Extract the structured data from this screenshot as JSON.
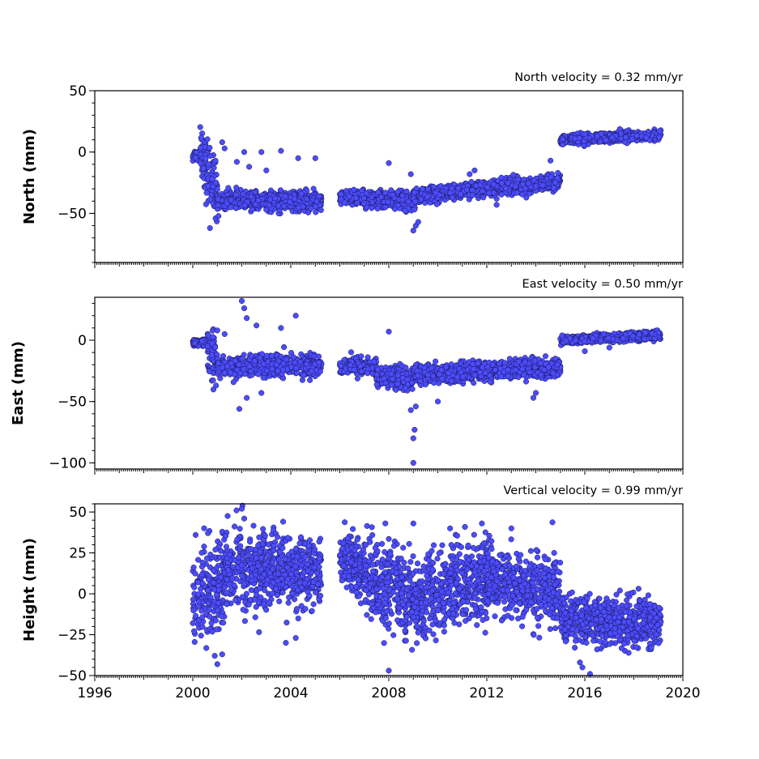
{
  "chart_data": [
    {
      "type": "scatter",
      "velocity_label": "North velocity = 0.32 mm/yr",
      "ylabel": "North (mm)",
      "xlim": [
        1996,
        2020
      ],
      "ylim": [
        -90,
        50
      ],
      "yticks": [
        50,
        0,
        -50
      ],
      "ytick_labels": [
        "50",
        "0",
        "−50"
      ],
      "marker_color": "#4c4cff",
      "segments": [
        {
          "x0": 2000.0,
          "x1": 2000.3,
          "y0": -3,
          "y1": -2,
          "noise": 2.5
        },
        {
          "x0": 2000.3,
          "x1": 2001.0,
          "y0": -5,
          "y1": -30,
          "noise": 12
        },
        {
          "x0": 2001.0,
          "x1": 2005.25,
          "y0": -40,
          "y1": -40,
          "noise": 3.5
        },
        {
          "x0": 2006.0,
          "x1": 2007.5,
          "y0": -37,
          "y1": -38,
          "noise": 3
        },
        {
          "x0": 2007.5,
          "x1": 2009.0,
          "y0": -38,
          "y1": -40,
          "noise": 3.5
        },
        {
          "x0": 2009.0,
          "x1": 2010.5,
          "y0": -37,
          "y1": -32,
          "noise": 3
        },
        {
          "x0": 2010.5,
          "x1": 2015.0,
          "y0": -32,
          "y1": -25,
          "noise": 3
        },
        {
          "x0": 2015.0,
          "x1": 2019.1,
          "y0": 10,
          "y1": 14,
          "noise": 1.8
        }
      ],
      "outliers": [
        {
          "x": 2000.7,
          "y": -62
        },
        {
          "x": 2001.2,
          "y": 8
        },
        {
          "x": 2001.3,
          "y": 3
        },
        {
          "x": 2001.8,
          "y": -8
        },
        {
          "x": 2002.1,
          "y": 0
        },
        {
          "x": 2002.3,
          "y": -12
        },
        {
          "x": 2002.8,
          "y": 0
        },
        {
          "x": 2003.0,
          "y": -15
        },
        {
          "x": 2003.6,
          "y": 1
        },
        {
          "x": 2004.3,
          "y": -5
        },
        {
          "x": 2005.0,
          "y": -5
        },
        {
          "x": 2008.0,
          "y": -9
        },
        {
          "x": 2009.0,
          "y": -64
        },
        {
          "x": 2009.1,
          "y": -60
        },
        {
          "x": 2009.2,
          "y": -57
        },
        {
          "x": 2008.9,
          "y": -18
        },
        {
          "x": 2011.3,
          "y": -18
        },
        {
          "x": 2011.5,
          "y": -15
        },
        {
          "x": 2014.6,
          "y": -7
        },
        {
          "x": 2014.9,
          "y": -17
        },
        {
          "x": 2012.4,
          "y": -43
        }
      ]
    },
    {
      "type": "scatter",
      "velocity_label": "East velocity = 0.50 mm/yr",
      "ylabel": "East (mm)",
      "xlim": [
        1996,
        2020
      ],
      "ylim": [
        -105,
        35
      ],
      "yticks": [
        0,
        -50,
        -100
      ],
      "ytick_labels": [
        "0",
        "−50",
        "−100"
      ],
      "marker_color": "#4c4cff",
      "segments": [
        {
          "x0": 2000.0,
          "x1": 2000.6,
          "y0": -2,
          "y1": -1,
          "noise": 1.5
        },
        {
          "x0": 2000.6,
          "x1": 2001.0,
          "y0": -10,
          "y1": -20,
          "noise": 10
        },
        {
          "x0": 2001.0,
          "x1": 2005.25,
          "y0": -22,
          "y1": -20,
          "noise": 4
        },
        {
          "x0": 2006.0,
          "x1": 2007.5,
          "y0": -21,
          "y1": -22,
          "noise": 3.5
        },
        {
          "x0": 2007.5,
          "x1": 2009.0,
          "y0": -30,
          "y1": -32,
          "noise": 4
        },
        {
          "x0": 2009.0,
          "x1": 2015.0,
          "y0": -28,
          "y1": -22,
          "noise": 3.5
        },
        {
          "x0": 2015.0,
          "x1": 2019.1,
          "y0": 0,
          "y1": 4,
          "noise": 1.6
        }
      ],
      "outliers": [
        {
          "x": 2001.0,
          "y": 8
        },
        {
          "x": 2001.3,
          "y": 5
        },
        {
          "x": 2002.0,
          "y": 32
        },
        {
          "x": 2002.1,
          "y": 26
        },
        {
          "x": 2002.2,
          "y": 18
        },
        {
          "x": 2001.9,
          "y": -56
        },
        {
          "x": 2002.2,
          "y": -47
        },
        {
          "x": 2002.8,
          "y": -43
        },
        {
          "x": 2002.6,
          "y": 12
        },
        {
          "x": 2003.6,
          "y": 10
        },
        {
          "x": 2004.2,
          "y": 20
        },
        {
          "x": 2008.0,
          "y": 7
        },
        {
          "x": 2009.0,
          "y": -100
        },
        {
          "x": 2009.0,
          "y": -80
        },
        {
          "x": 2009.05,
          "y": -73
        },
        {
          "x": 2008.9,
          "y": -57
        },
        {
          "x": 2009.1,
          "y": -54
        },
        {
          "x": 2010.0,
          "y": -50
        },
        {
          "x": 2013.9,
          "y": -47
        },
        {
          "x": 2014.0,
          "y": -43
        },
        {
          "x": 2016.0,
          "y": -9
        },
        {
          "x": 2017.0,
          "y": -6
        }
      ]
    },
    {
      "type": "scatter",
      "velocity_label": "Vertical velocity = 0.99 mm/yr",
      "ylabel": "Height (mm)",
      "xlim": [
        1996,
        2020
      ],
      "ylim": [
        -50,
        55
      ],
      "yticks": [
        50,
        25,
        0,
        -25,
        -50
      ],
      "ytick_labels": [
        "50",
        "25",
        "0",
        "−25",
        "−50"
      ],
      "xticks": [
        1996,
        2000,
        2004,
        2008,
        2012,
        2016,
        2020
      ],
      "xtick_labels": [
        "1996",
        "2000",
        "2004",
        "2008",
        "2012",
        "2016",
        "2020"
      ],
      "marker_color": "#4c4cff",
      "segments": [
        {
          "x0": 2000.0,
          "x1": 2001.3,
          "y0": -5,
          "y1": 10,
          "noise": 16
        },
        {
          "x0": 2001.3,
          "x1": 2005.25,
          "y0": 15,
          "y1": 12,
          "noise": 11
        },
        {
          "x0": 2006.0,
          "x1": 2007.0,
          "y0": 22,
          "y1": 15,
          "noise": 9
        },
        {
          "x0": 2007.0,
          "x1": 2009.5,
          "y0": 10,
          "y1": -5,
          "noise": 12
        },
        {
          "x0": 2009.5,
          "x1": 2012.0,
          "y0": 0,
          "y1": 10,
          "noise": 12
        },
        {
          "x0": 2012.0,
          "x1": 2015.0,
          "y0": 8,
          "y1": 0,
          "noise": 10
        },
        {
          "x0": 2015.0,
          "x1": 2019.1,
          "y0": -15,
          "y1": -18,
          "noise": 7
        }
      ],
      "outliers": [
        {
          "x": 2002.0,
          "y": 52
        },
        {
          "x": 2002.1,
          "y": 46
        },
        {
          "x": 2001.0,
          "y": -43
        },
        {
          "x": 2001.2,
          "y": -37
        },
        {
          "x": 2008.0,
          "y": -47
        },
        {
          "x": 2009.0,
          "y": 43
        },
        {
          "x": 2010.5,
          "y": 40
        },
        {
          "x": 2011.8,
          "y": 43
        },
        {
          "x": 2013.0,
          "y": 40
        },
        {
          "x": 2003.8,
          "y": -30
        },
        {
          "x": 2004.2,
          "y": -27
        },
        {
          "x": 2015.8,
          "y": -42
        },
        {
          "x": 2015.9,
          "y": -45
        }
      ]
    }
  ]
}
